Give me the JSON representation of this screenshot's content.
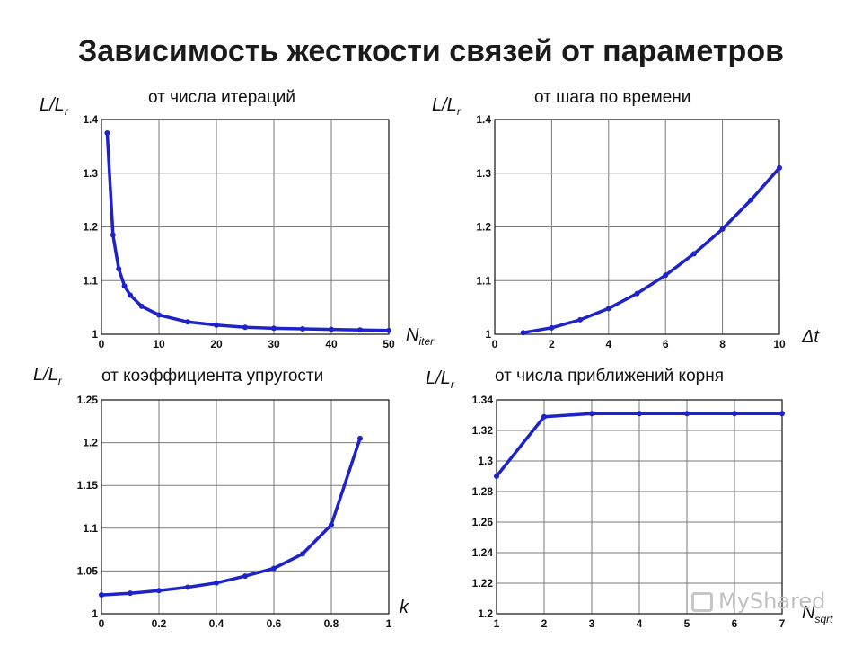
{
  "title": "Зависимость жесткости связей от параметров",
  "watermark": "MyShared",
  "chart_data": [
    {
      "type": "line",
      "title": "от числа итераций",
      "ylabel": "L/L",
      "ylabel_sub": "r",
      "xlabel": "N",
      "xlabel_sub": "iter",
      "xlim": [
        0,
        50
      ],
      "ylim": [
        1,
        1.4
      ],
      "xticks": [
        "0",
        "10",
        "20",
        "30",
        "40",
        "50"
      ],
      "yticks": [
        "1",
        "1.1",
        "1.2",
        "1.3",
        "1.4"
      ],
      "xtick_values": [
        0,
        10,
        20,
        30,
        40,
        50
      ],
      "ytick_values": [
        1,
        1.1,
        1.2,
        1.3,
        1.4
      ],
      "grid": true,
      "color": "#1d22c9",
      "x": [
        1,
        2,
        3,
        4,
        5,
        7,
        10,
        15,
        20,
        25,
        30,
        35,
        40,
        45,
        50
      ],
      "y": [
        1.375,
        1.185,
        1.122,
        1.09,
        1.073,
        1.052,
        1.036,
        1.023,
        1.017,
        1.013,
        1.011,
        1.01,
        1.009,
        1.008,
        1.007
      ]
    },
    {
      "type": "line",
      "title": "от шага по времени",
      "ylabel": "L/L",
      "ylabel_sub": "r",
      "xlabel": "Δt",
      "xlabel_sub": "",
      "xlim": [
        0,
        10
      ],
      "ylim": [
        1,
        1.4
      ],
      "xticks": [
        "0",
        "2",
        "4",
        "6",
        "8",
        "10"
      ],
      "yticks": [
        "1",
        "1.1",
        "1.2",
        "1.3",
        "1.4"
      ],
      "xtick_values": [
        0,
        2,
        4,
        6,
        8,
        10
      ],
      "ytick_values": [
        1,
        1.1,
        1.2,
        1.3,
        1.4
      ],
      "grid": true,
      "color": "#1d22c9",
      "x": [
        1,
        2,
        3,
        4,
        5,
        6,
        7,
        8,
        9,
        10
      ],
      "y": [
        1.003,
        1.012,
        1.027,
        1.048,
        1.076,
        1.11,
        1.15,
        1.196,
        1.25,
        1.31
      ]
    },
    {
      "type": "line",
      "title": "от коэффициента упругости",
      "ylabel": "L/L",
      "ylabel_sub": "r",
      "xlabel": "k",
      "xlabel_sub": "",
      "xlim": [
        0,
        1
      ],
      "ylim": [
        1,
        1.25
      ],
      "xticks": [
        "0",
        "0.2",
        "0.4",
        "0.6",
        "0.8",
        "1"
      ],
      "yticks": [
        "1",
        "1.05",
        "1.1",
        "1.15",
        "1.2",
        "1.25"
      ],
      "xtick_values": [
        0,
        0.2,
        0.4,
        0.6,
        0.8,
        1
      ],
      "ytick_values": [
        1,
        1.05,
        1.1,
        1.15,
        1.2,
        1.25
      ],
      "grid": true,
      "color": "#1d22c9",
      "x": [
        0,
        0.1,
        0.2,
        0.3,
        0.4,
        0.5,
        0.6,
        0.7,
        0.8,
        0.9
      ],
      "y": [
        1.022,
        1.024,
        1.027,
        1.031,
        1.036,
        1.044,
        1.053,
        1.07,
        1.104,
        1.205
      ]
    },
    {
      "type": "line",
      "title": "от числа приближений корня",
      "ylabel": "L/L",
      "ylabel_sub": "r",
      "xlabel": "N",
      "xlabel_sub": "sqrt",
      "xlim": [
        1,
        7
      ],
      "ylim": [
        1.2,
        1.34
      ],
      "xticks": [
        "1",
        "2",
        "3",
        "4",
        "5",
        "6",
        "7"
      ],
      "yticks": [
        "1.2",
        "1.22",
        "1.24",
        "1.26",
        "1.28",
        "1.3",
        "1.32",
        "1.34"
      ],
      "xtick_values": [
        1,
        2,
        3,
        4,
        5,
        6,
        7
      ],
      "ytick_values": [
        1.2,
        1.22,
        1.24,
        1.26,
        1.28,
        1.3,
        1.32,
        1.34
      ],
      "grid": true,
      "color": "#1d22c9",
      "x": [
        1,
        2,
        3,
        4,
        5,
        6,
        7
      ],
      "y": [
        1.29,
        1.329,
        1.331,
        1.331,
        1.331,
        1.331,
        1.331
      ]
    }
  ]
}
